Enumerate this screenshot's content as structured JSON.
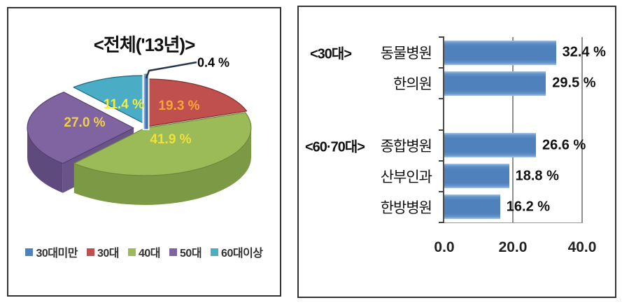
{
  "chart_data": [
    {
      "type": "pie",
      "style": "3d-exploded",
      "title": "<전체('13년)>",
      "labels": [
        "30대미만",
        "30대",
        "40대",
        "50대",
        "60대이상"
      ],
      "values": [
        0.4,
        19.3,
        41.9,
        27.0,
        11.4
      ],
      "value_labels": [
        "0.4 %",
        "19.3 %",
        "41.9 %",
        "27.0 %",
        "11.4 %"
      ],
      "colors": [
        "#4F81BD",
        "#C0504D",
        "#9BBB59",
        "#8064A2",
        "#4BACC6"
      ],
      "value_label_colors": [
        "#000000",
        "#F9A53C",
        "#EFE03C",
        "#EFD244",
        "#F2EE3E"
      ],
      "legend_position": "bottom",
      "unit": "%"
    },
    {
      "type": "bar",
      "orientation": "horizontal",
      "groups": [
        "<30대>",
        "<60·70대>"
      ],
      "categories": [
        "동물병원",
        "한의원",
        "종합병원",
        "산부인과",
        "한방병원"
      ],
      "group_of_category": [
        "<30대>",
        "<30대>",
        "<60·70대>",
        "<60·70대>",
        "<60·70대>"
      ],
      "values": [
        32.4,
        29.5,
        26.6,
        18.8,
        16.2
      ],
      "value_labels": [
        "32.4 %",
        "29.5 %",
        "26.6 %",
        "18.8 %",
        "16.2 %"
      ],
      "x_ticks": [
        "0.0",
        "20.0",
        "40.0"
      ],
      "xlim": [
        0,
        40
      ],
      "bar_color": "#4F81BD",
      "grid": "vertical",
      "unit": "%"
    }
  ]
}
